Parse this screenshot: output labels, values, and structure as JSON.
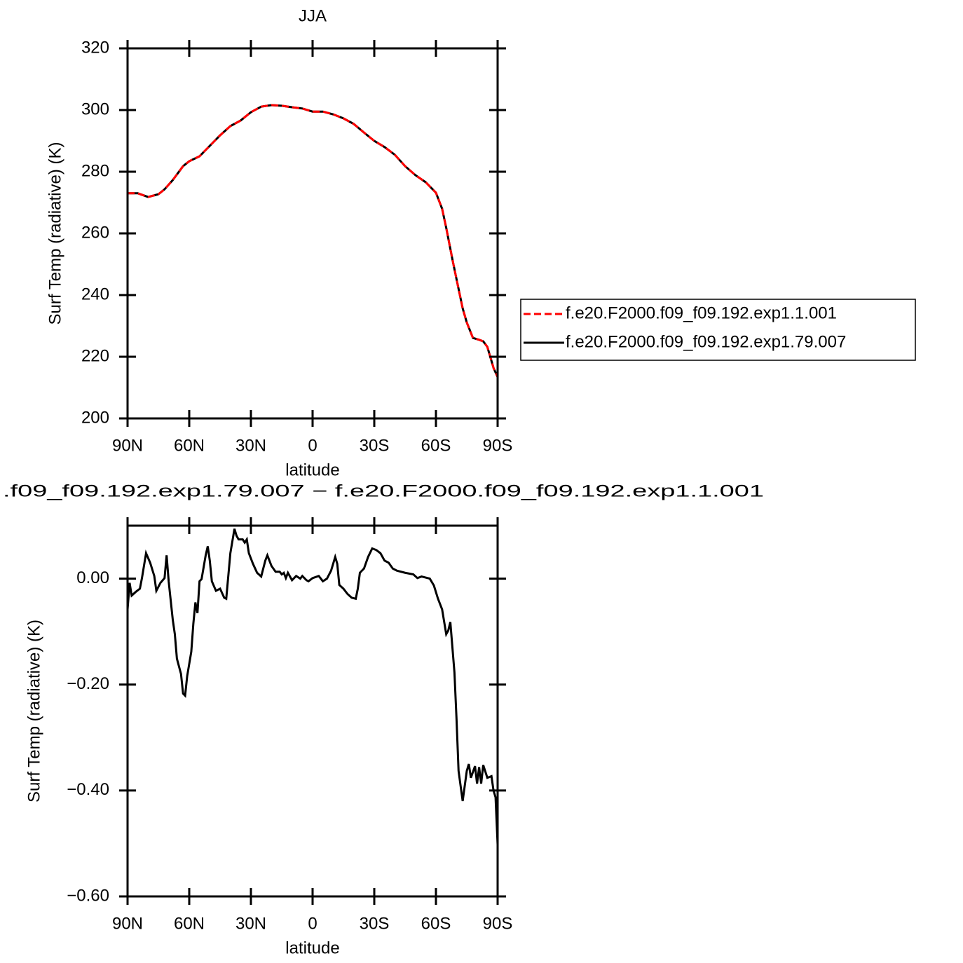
{
  "chart_data": [
    {
      "type": "line",
      "title": "JJA",
      "xlabel": "latitude",
      "ylabel": "Surf Temp (radiative) (K)",
      "x": [
        90,
        85,
        80,
        75,
        72,
        68,
        63,
        60,
        55,
        50,
        45,
        40,
        35,
        30,
        25,
        20,
        15,
        10,
        5,
        0,
        -5,
        -10,
        -15,
        -20,
        -25,
        -30,
        -35,
        -40,
        -45,
        -50,
        -55,
        -60,
        -63,
        -65,
        -68,
        -70,
        -73,
        -75,
        -78,
        -81,
        -83,
        -85,
        -88,
        -90
      ],
      "xlim": [
        90,
        -90
      ],
      "xticks": [
        {
          "value": 90,
          "label": "90N"
        },
        {
          "value": 60,
          "label": "60N"
        },
        {
          "value": 30,
          "label": "30N"
        },
        0,
        {
          "value": -30,
          "label": "30S"
        },
        {
          "value": -60,
          "label": "60S"
        },
        {
          "value": -90,
          "label": "90S"
        }
      ],
      "ylim": [
        200,
        320
      ],
      "yticks": [
        200,
        220,
        240,
        260,
        280,
        300,
        320
      ],
      "legend": "right",
      "series": [
        {
          "name": "f.e20.F2000.f09_f09.192.exp1.1.001",
          "color": "#ff0000",
          "linestyle": "dashed",
          "values": [
            273,
            273,
            271.8,
            272.7,
            274.3,
            277.3,
            281.8,
            283.4,
            285,
            288.4,
            291.8,
            294.8,
            296.6,
            299.3,
            301.1,
            301.6,
            301.4,
            300.9,
            300.5,
            299.5,
            299.5,
            298.6,
            297.3,
            295.5,
            292.7,
            290,
            288,
            285.5,
            281.8,
            278.9,
            276.6,
            273.2,
            268,
            261.8,
            251.6,
            245.2,
            235.7,
            231.1,
            226.1,
            225.5,
            225,
            223.2,
            216.4,
            213.4
          ]
        },
        {
          "name": "f.e20.F2000.f09_f09.192.exp1.79.007",
          "color": "#000000",
          "linestyle": "solid",
          "values": [
            273,
            273,
            271.8,
            272.7,
            274.3,
            277.3,
            281.8,
            283.4,
            285,
            288.4,
            291.8,
            294.8,
            296.6,
            299.3,
            301.1,
            301.6,
            301.4,
            300.9,
            300.5,
            299.5,
            299.5,
            298.6,
            297.3,
            295.5,
            292.7,
            290,
            288,
            285.5,
            281.8,
            278.9,
            276.6,
            273.2,
            268,
            261.8,
            251.6,
            245.2,
            235.7,
            231.1,
            226.1,
            225.5,
            225,
            223.2,
            216.4,
            213.4
          ]
        }
      ]
    },
    {
      "type": "line",
      "title": ".f09_f09.192.exp1.79.007 − f.e20.F2000.f09_f09.192.exp1.1.001",
      "xlabel": "latitude",
      "ylabel": "Surf Temp (radiative) (K)",
      "x": [
        90,
        89,
        88,
        86,
        84,
        83,
        81,
        79,
        77,
        76,
        74,
        72,
        71,
        70,
        68,
        67,
        66,
        64,
        63,
        62,
        61,
        59,
        58,
        57,
        56,
        55,
        54,
        52,
        51,
        50,
        49,
        47,
        45,
        43,
        42,
        40,
        38,
        37,
        36,
        34,
        33,
        32,
        31,
        29,
        27,
        25,
        23,
        22,
        20,
        18,
        16,
        15,
        14,
        13,
        12,
        10,
        8,
        6,
        5,
        3,
        2,
        0,
        -3,
        -5,
        -7,
        -9,
        -11,
        -12,
        -13,
        -15,
        -17,
        -19,
        -21,
        -22,
        -23,
        -25,
        -27,
        -29,
        -31,
        -33,
        -35,
        -37,
        -39,
        -41,
        -45,
        -49,
        -51,
        -53,
        -57,
        -59,
        -61,
        -63,
        -65,
        -66,
        -67,
        -69,
        -70,
        -71,
        -73,
        -75,
        -76,
        -77,
        -79,
        -80,
        -81,
        -82,
        -83,
        -85,
        -87,
        -88,
        -89,
        -90
      ],
      "xlim": [
        90,
        -90
      ],
      "xticks": [
        {
          "value": 90,
          "label": "90N"
        },
        {
          "value": 60,
          "label": "60N"
        },
        {
          "value": 30,
          "label": "30N"
        },
        0,
        {
          "value": -30,
          "label": "30S"
        },
        {
          "value": -60,
          "label": "60S"
        },
        {
          "value": -90,
          "label": "90S"
        }
      ],
      "ylim": [
        -0.6,
        0.1
      ],
      "yticks": [
        {
          "value": -0.6,
          "label": "−0.60"
        },
        {
          "value": -0.4,
          "label": "−0.40"
        },
        {
          "value": -0.2,
          "label": "−0.20"
        },
        {
          "value": 0,
          "label": "0.00"
        }
      ],
      "series": [
        {
          "color": "#000000",
          "linestyle": "solid",
          "values": [
            -0.058,
            -0.008,
            -0.032,
            -0.025,
            -0.019,
            0.001,
            0.048,
            0.03,
            0.005,
            -0.023,
            -0.008,
            0.001,
            0.044,
            -0.005,
            -0.078,
            -0.105,
            -0.151,
            -0.18,
            -0.217,
            -0.221,
            -0.184,
            -0.138,
            -0.085,
            -0.045,
            -0.065,
            -0.005,
            -0.001,
            0.044,
            0.061,
            0.034,
            -0.005,
            -0.023,
            -0.019,
            -0.036,
            -0.038,
            0.048,
            0.094,
            0.081,
            0.074,
            0.074,
            0.068,
            0.074,
            0.048,
            0.028,
            0.011,
            0.004,
            0.034,
            0.044,
            0.024,
            0.013,
            0.013,
            0.008,
            0.011,
            0.001,
            0.011,
            -0.003,
            0.005,
            0.0,
            0.005,
            -0.003,
            -0.005,
            0.001,
            0.005,
            -0.005,
            0.0,
            0.015,
            0.041,
            0.028,
            -0.012,
            -0.019,
            -0.029,
            -0.036,
            -0.038,
            -0.019,
            0.011,
            0.019,
            0.041,
            0.057,
            0.054,
            0.048,
            0.034,
            0.03,
            0.019,
            0.015,
            0.011,
            0.008,
            0.001,
            0.004,
            0.0,
            -0.013,
            -0.038,
            -0.058,
            -0.105,
            -0.098,
            -0.082,
            -0.177,
            -0.264,
            -0.363,
            -0.42,
            -0.363,
            -0.35,
            -0.376,
            -0.354,
            -0.387,
            -0.356,
            -0.387,
            -0.352,
            -0.376,
            -0.373,
            -0.4,
            -0.413,
            -0.502
          ]
        }
      ]
    }
  ]
}
